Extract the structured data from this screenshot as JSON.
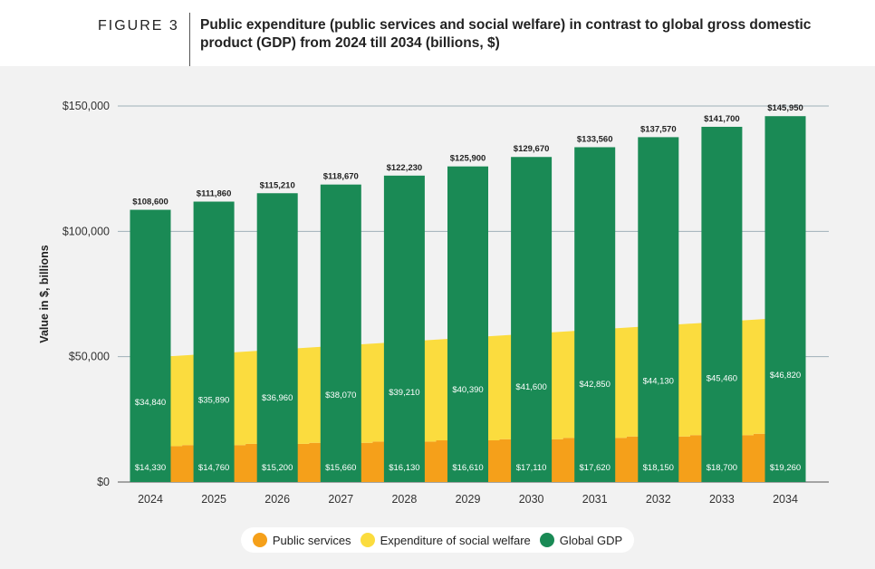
{
  "header": {
    "figure_label": "FIGURE 3",
    "title": "Public expenditure (public services and social welfare) in contrast to global gross domestic product (GDP) from 2024 till 2034 (billions, $)"
  },
  "chart_data": {
    "type": "bar",
    "title": "Public expenditure (public services and social welfare) in contrast to global gross domestic product (GDP) from 2024 till 2034 (billions, $)",
    "xlabel": "",
    "ylabel": "Value in $, billions",
    "ylim": [
      0,
      150000
    ],
    "yticks": [
      0,
      50000,
      100000,
      150000
    ],
    "ytick_labels": [
      "$0",
      "$50,000",
      "$100,000",
      "$150,000"
    ],
    "grid": "horizontal",
    "legend_position": "bottom",
    "categories": [
      "2024",
      "2025",
      "2026",
      "2027",
      "2028",
      "2029",
      "2030",
      "2031",
      "2032",
      "2033",
      "2034"
    ],
    "series": [
      {
        "name": "Public services",
        "color": "#f5a01a",
        "values": [
          14330,
          14760,
          15200,
          15660,
          16130,
          16610,
          17110,
          17620,
          18150,
          18700,
          19260
        ],
        "labels": [
          "$14,330",
          "$14,760",
          "$15,200",
          "$15,660",
          "$16,130",
          "$16,610",
          "$17,110",
          "$17,620",
          "$18,150",
          "$18,700",
          "$19,260"
        ]
      },
      {
        "name": "Expenditure of social welfare",
        "color": "#fbdc3e",
        "values": [
          34840,
          35890,
          36960,
          38070,
          39210,
          40390,
          41600,
          42850,
          44130,
          45460,
          46820
        ],
        "labels": [
          "$34,840",
          "$35,890",
          "$36,960",
          "$38,070",
          "$39,210",
          "$40,390",
          "$41,600",
          "$42,850",
          "$44,130",
          "$45,460",
          "$46,820"
        ]
      },
      {
        "name": "Global GDP",
        "color": "#1a8a55",
        "values": [
          108600,
          111860,
          115210,
          118670,
          122230,
          125900,
          129670,
          133560,
          137570,
          141700,
          145950
        ],
        "labels": [
          "$108,600",
          "$111,860",
          "$115,210",
          "$118,670",
          "$122,230",
          "$125,900",
          "$129,670",
          "$133,560",
          "$137,570",
          "$141,700",
          "$145,950"
        ]
      }
    ]
  }
}
